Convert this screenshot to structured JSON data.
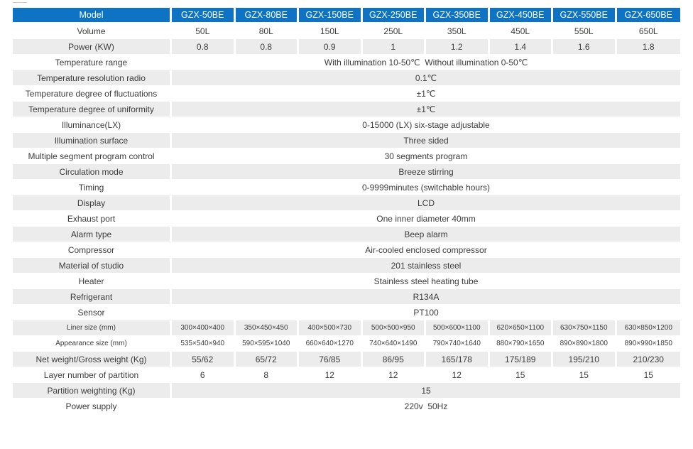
{
  "table": {
    "colors": {
      "header_bg": "#0e73c5",
      "header_text": "#ffffff",
      "alt_row_bg": "#ececec",
      "body_text": "#3c3c3c"
    },
    "header": {
      "label": "Model",
      "models": [
        "GZX-50BE",
        "GZX-80BE",
        "GZX-150BE",
        "GZX-250BE",
        "GZX-350BE",
        "GZX-450BE",
        "GZX-550BE",
        "GZX-650BE"
      ]
    },
    "rows": [
      {
        "label": "Volume",
        "type": "per",
        "values": [
          "50L",
          "80L",
          "150L",
          "250L",
          "350L",
          "450L",
          "550L",
          "650L"
        ]
      },
      {
        "label": "Power (KW)",
        "type": "per",
        "values": [
          "0.8",
          "0.8",
          "0.9",
          "1",
          "1.2",
          "1.4",
          "1.6",
          "1.8"
        ]
      },
      {
        "label": "Temperature range",
        "type": "merged",
        "value": "With illumination 10-50℃  Without illumination 0-50℃"
      },
      {
        "label": "Temperature resolution radio",
        "type": "merged",
        "value": "0.1℃"
      },
      {
        "label": "Temperature degree of fluctuations",
        "type": "merged",
        "value": "±1℃"
      },
      {
        "label": "Temperature degree of uniformity",
        "type": "merged",
        "value": "±1℃"
      },
      {
        "label": "Illuminance(LX)",
        "type": "merged",
        "value": "0-15000 (LX) six-stage adjustable"
      },
      {
        "label": "Illumination surface",
        "type": "merged",
        "value": "Three sided"
      },
      {
        "label": "Multiple segment program control",
        "type": "merged",
        "value": "30 segments program"
      },
      {
        "label": "Circulation mode",
        "type": "merged",
        "value": "Breeze stirring"
      },
      {
        "label": "Timing",
        "type": "merged",
        "value": "0-9999minutes (switchable hours)"
      },
      {
        "label": "Display",
        "type": "merged",
        "value": "LCD"
      },
      {
        "label": "Exhaust port",
        "type": "merged",
        "value": "One inner diameter 40mm"
      },
      {
        "label": "Alarm type",
        "type": "merged",
        "value": "Beep alarm"
      },
      {
        "label": "Compressor",
        "type": "merged",
        "value": "Air-cooled enclosed compressor"
      },
      {
        "label": "Material of studio",
        "type": "merged",
        "value": "201 stainless steel"
      },
      {
        "label": "Heater",
        "type": "merged",
        "value": "Stainless steel heating tube"
      },
      {
        "label": "Refrigerant",
        "type": "merged",
        "value": "R134A"
      },
      {
        "label": "Sensor",
        "type": "merged",
        "value": "PT100"
      },
      {
        "label": "Liner size (mm)",
        "type": "per",
        "small": true,
        "values": [
          "300×400×400",
          "350×450×450",
          "400×500×730",
          "500×500×950",
          "500×600×1100",
          "620×650×1100",
          "630×750×1150",
          "630×850×1200"
        ]
      },
      {
        "label": "Appearance size (mm)",
        "type": "per",
        "small": true,
        "values": [
          "535×540×940",
          "590×595×1040",
          "660×640×1270",
          "740×640×1490",
          "790×740×1640",
          "880×790×1650",
          "890×890×1800",
          "890×990×1850"
        ]
      },
      {
        "label": "Net weight/Gross weight (Kg)",
        "type": "per",
        "values": [
          "55/62",
          "65/72",
          "76/85",
          "86/95",
          "165/178",
          "175/189",
          "195/210",
          "210/230"
        ]
      },
      {
        "label": "Layer number of partition",
        "type": "per",
        "values": [
          "6",
          "8",
          "12",
          "12",
          "12",
          "15",
          "15",
          "15"
        ]
      },
      {
        "label": "Partition weighting (Kg)",
        "type": "merged",
        "value": "15"
      },
      {
        "label": "Power supply",
        "type": "merged",
        "value": "220v  50Hz"
      }
    ]
  }
}
